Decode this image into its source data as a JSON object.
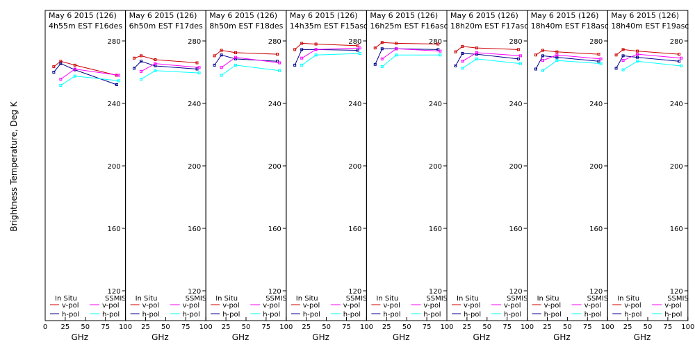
{
  "figure": {
    "ylabel": "Brightness Temperature, Deg K",
    "xlabel": "GHz",
    "y_ticks": [
      120,
      160,
      200,
      240,
      280
    ],
    "x_ticks": [
      0,
      25,
      50,
      75,
      100
    ],
    "x_tick_labels": [
      "0",
      "25",
      "50",
      "75",
      "100"
    ],
    "legend": {
      "insitu_header": "In Situ",
      "ssmis_header": "SSMIS",
      "vpol": "v-pol",
      "hpol": "h-pol"
    },
    "colors": {
      "insitu_v": "#cc0000",
      "insitu_h": "#00008b",
      "ssmis_v": "#ff00ff",
      "ssmis_h": "#00ffff"
    }
  },
  "chart_data": [
    {
      "type": "line",
      "title": "May 6 2015 (126)",
      "subtitle": "4h55m EST F16des",
      "xlabel": "GHz",
      "ylabel": "Brightness Temperature, Deg K",
      "xlim": [
        0,
        100
      ],
      "ylim": [
        110,
        290
      ],
      "grid": false,
      "legend_position": "bottom",
      "series": [
        {
          "name": "v-pol",
          "group": "In Situ",
          "x": [
            10.7,
            19.35,
            37,
            89
          ],
          "y": [
            263.5,
            267,
            264.5,
            258
          ]
        },
        {
          "name": "h-pol",
          "group": "In Situ",
          "x": [
            10.7,
            19.35,
            37,
            89
          ],
          "y": [
            260,
            265.5,
            261.5,
            252
          ]
        },
        {
          "name": "v-pol",
          "group": "SSMIS",
          "x": [
            19.35,
            37,
            91.655
          ],
          "y": [
            255.5,
            262,
            258
          ]
        },
        {
          "name": "h-pol",
          "group": "SSMIS",
          "x": [
            19.35,
            37,
            91.655
          ],
          "y": [
            251.5,
            257.5,
            254.5
          ]
        }
      ]
    },
    {
      "type": "line",
      "title": "May 6 2015 (126)",
      "subtitle": "6h50m EST F17des",
      "xlabel": "GHz",
      "ylabel": "Brightness Temperature, Deg K",
      "xlim": [
        0,
        100
      ],
      "ylim": [
        110,
        290
      ],
      "grid": false,
      "legend_position": "bottom",
      "series": [
        {
          "name": "v-pol",
          "group": "In Situ",
          "x": [
            10.7,
            19.35,
            37,
            89
          ],
          "y": [
            269,
            270.5,
            268,
            266
          ]
        },
        {
          "name": "h-pol",
          "group": "In Situ",
          "x": [
            10.7,
            19.35,
            37,
            89
          ],
          "y": [
            262.5,
            267,
            264,
            262
          ]
        },
        {
          "name": "v-pol",
          "group": "SSMIS",
          "x": [
            19.35,
            37,
            91.655
          ],
          "y": [
            260.5,
            265.5,
            263
          ]
        },
        {
          "name": "h-pol",
          "group": "SSMIS",
          "x": [
            19.35,
            37,
            91.655
          ],
          "y": [
            255.5,
            261,
            259.5
          ]
        }
      ]
    },
    {
      "type": "line",
      "title": "May 6 2015 (126)",
      "subtitle": "8h50m EST F18des",
      "xlabel": "GHz",
      "ylabel": "Brightness Temperature, Deg K",
      "xlim": [
        0,
        100
      ],
      "ylim": [
        110,
        290
      ],
      "grid": false,
      "legend_position": "bottom",
      "series": [
        {
          "name": "v-pol",
          "group": "In Situ",
          "x": [
            10.7,
            19.35,
            37,
            89
          ],
          "y": [
            270.5,
            274,
            272.5,
            271.5
          ]
        },
        {
          "name": "h-pol",
          "group": "In Situ",
          "x": [
            10.7,
            19.35,
            37,
            89
          ],
          "y": [
            264.5,
            271,
            268.5,
            267
          ]
        },
        {
          "name": "v-pol",
          "group": "SSMIS",
          "x": [
            19.35,
            37,
            91.655
          ],
          "y": [
            263,
            269.5,
            266
          ]
        },
        {
          "name": "h-pol",
          "group": "SSMIS",
          "x": [
            19.35,
            37,
            91.655
          ],
          "y": [
            258,
            264.5,
            261
          ]
        }
      ]
    },
    {
      "type": "line",
      "title": "May 6 2015 (126)",
      "subtitle": "14h35m EST F15asc",
      "xlabel": "GHz",
      "ylabel": "Brightness Temperature, Deg K",
      "xlim": [
        0,
        100
      ],
      "ylim": [
        110,
        290
      ],
      "grid": false,
      "legend_position": "bottom",
      "series": [
        {
          "name": "v-pol",
          "group": "In Situ",
          "x": [
            10.7,
            19.35,
            37,
            89
          ],
          "y": [
            274.5,
            278.5,
            278,
            277
          ]
        },
        {
          "name": "h-pol",
          "group": "In Situ",
          "x": [
            10.7,
            19.35,
            37,
            89
          ],
          "y": [
            264.5,
            274.5,
            274.5,
            274
          ]
        },
        {
          "name": "v-pol",
          "group": "SSMIS",
          "x": [
            19.35,
            37,
            91.655
          ],
          "y": [
            269,
            274.5,
            275.5
          ]
        },
        {
          "name": "h-pol",
          "group": "SSMIS",
          "x": [
            19.35,
            37,
            91.655
          ],
          "y": [
            264.5,
            271,
            272
          ]
        }
      ]
    },
    {
      "type": "line",
      "title": "May 6 2015 (126)",
      "subtitle": "16h25m EST F16asc",
      "xlabel": "GHz",
      "ylabel": "Brightness Temperature, Deg K",
      "xlim": [
        0,
        100
      ],
      "ylim": [
        110,
        290
      ],
      "grid": false,
      "legend_position": "bottom",
      "series": [
        {
          "name": "v-pol",
          "group": "In Situ",
          "x": [
            10.7,
            19.35,
            37,
            89
          ],
          "y": [
            275.5,
            279,
            278.5,
            278
          ]
        },
        {
          "name": "h-pol",
          "group": "In Situ",
          "x": [
            10.7,
            19.35,
            37,
            89
          ],
          "y": [
            265,
            275,
            275,
            274.5
          ]
        },
        {
          "name": "v-pol",
          "group": "SSMIS",
          "x": [
            19.35,
            37,
            91.655
          ],
          "y": [
            268.5,
            275,
            273.5
          ]
        },
        {
          "name": "h-pol",
          "group": "SSMIS",
          "x": [
            19.35,
            37,
            91.655
          ],
          "y": [
            263.5,
            271,
            271
          ]
        }
      ]
    },
    {
      "type": "line",
      "title": "May 6 2015 (126)",
      "subtitle": "18h20m EST F17asc",
      "xlabel": "GHz",
      "ylabel": "Brightness Temperature, Deg K",
      "xlim": [
        0,
        100
      ],
      "ylim": [
        110,
        290
      ],
      "grid": false,
      "legend_position": "bottom",
      "series": [
        {
          "name": "v-pol",
          "group": "In Situ",
          "x": [
            10.7,
            19.35,
            37,
            89
          ],
          "y": [
            273,
            276.5,
            275.5,
            274.5
          ]
        },
        {
          "name": "h-pol",
          "group": "In Situ",
          "x": [
            10.7,
            19.35,
            37,
            89
          ],
          "y": [
            264,
            272,
            271.5,
            268.5
          ]
        },
        {
          "name": "v-pol",
          "group": "SSMIS",
          "x": [
            19.35,
            37,
            91.655
          ],
          "y": [
            267,
            272.5,
            270.5
          ]
        },
        {
          "name": "h-pol",
          "group": "SSMIS",
          "x": [
            19.35,
            37,
            91.655
          ],
          "y": [
            262.5,
            268.5,
            265.5
          ]
        }
      ]
    },
    {
      "type": "line",
      "title": "May 6 2015 (126)",
      "subtitle": "18h40m EST F18asc",
      "xlabel": "GHz",
      "ylabel": "Brightness Temperature, Deg K",
      "xlim": [
        0,
        100
      ],
      "ylim": [
        110,
        290
      ],
      "grid": false,
      "legend_position": "bottom",
      "series": [
        {
          "name": "v-pol",
          "group": "In Situ",
          "x": [
            10.7,
            19.35,
            37,
            89
          ],
          "y": [
            271,
            274,
            273,
            271.5
          ]
        },
        {
          "name": "h-pol",
          "group": "In Situ",
          "x": [
            10.7,
            19.35,
            37,
            89
          ],
          "y": [
            262,
            270.5,
            269.5,
            267
          ]
        },
        {
          "name": "v-pol",
          "group": "SSMIS",
          "x": [
            19.35,
            37,
            91.655
          ],
          "y": [
            267.5,
            271,
            268.5
          ]
        },
        {
          "name": "h-pol",
          "group": "SSMIS",
          "x": [
            19.35,
            37,
            91.655
          ],
          "y": [
            261,
            267.5,
            265.5
          ]
        }
      ]
    },
    {
      "type": "line",
      "title": "May 6 2015 (126)",
      "subtitle": "18h40m EST F19asc",
      "xlabel": "GHz",
      "ylabel": "Brightness Temperature, Deg K",
      "xlim": [
        0,
        100
      ],
      "ylim": [
        110,
        290
      ],
      "grid": false,
      "legend_position": "bottom",
      "series": [
        {
          "name": "v-pol",
          "group": "In Situ",
          "x": [
            10.7,
            19.35,
            37,
            89
          ],
          "y": [
            271,
            274.5,
            273.5,
            271.5
          ]
        },
        {
          "name": "h-pol",
          "group": "In Situ",
          "x": [
            10.7,
            19.35,
            37,
            89
          ],
          "y": [
            262.5,
            270.5,
            269.5,
            267
          ]
        },
        {
          "name": "v-pol",
          "group": "SSMIS",
          "x": [
            19.35,
            37,
            91.655
          ],
          "y": [
            267.5,
            271.5,
            269
          ]
        },
        {
          "name": "h-pol",
          "group": "SSMIS",
          "x": [
            19.35,
            37,
            91.655
          ],
          "y": [
            261.5,
            267,
            264
          ]
        }
      ]
    }
  ]
}
